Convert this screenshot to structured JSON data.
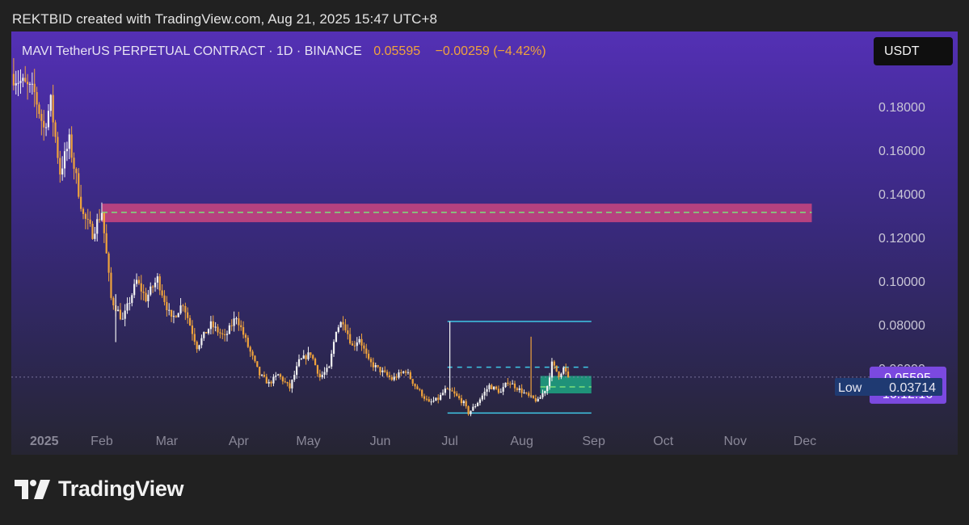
{
  "header": {
    "attribution": "REKTBID created with TradingView.com, Aug 21, 2025 15:47 UTC+8"
  },
  "symbol": {
    "title": "MAVI TetherUS PERPETUAL CONTRACT · 1D · BINANCE",
    "last_price": "0.05595",
    "change": "−0.00259 (−4.42%)"
  },
  "currency_button": "USDT",
  "price_tag": {
    "price": "0.05595",
    "countdown": "16:12:16"
  },
  "low_tag": {
    "label": "Low",
    "value": "0.03714"
  },
  "brand": {
    "name": "TradingView"
  },
  "colors": {
    "up": "#f2f2f2",
    "down": "#f0a33c",
    "resistance_zone": "#d2477f",
    "support_zone": "#1e9e7e",
    "range_lines": "#3fc7e6",
    "price_tag_bg": "#7b49e0",
    "low_tag_bg": "#1f3a72"
  },
  "chart_data": {
    "type": "candlestick",
    "interval": "1D",
    "y_axis": {
      "min": 0.03,
      "max": 0.19,
      "ticks": [
        0.18,
        0.16,
        0.14,
        0.12,
        0.1,
        0.08,
        0.06
      ],
      "tick_labels": [
        "0.18000",
        "0.16000",
        "0.14000",
        "0.12000",
        "0.10000",
        "0.08000",
        "0.06000"
      ],
      "position": "right"
    },
    "x_axis": {
      "start": "2024-12-24",
      "end": "2025-12-31",
      "labels": [
        {
          "date": "2025-01-01",
          "text": "2025"
        },
        {
          "date": "2025-02-01",
          "text": "Feb"
        },
        {
          "date": "2025-03-01",
          "text": "Mar"
        },
        {
          "date": "2025-04-01",
          "text": "Apr"
        },
        {
          "date": "2025-05-01",
          "text": "May"
        },
        {
          "date": "2025-06-01",
          "text": "Jun"
        },
        {
          "date": "2025-07-01",
          "text": "Jul"
        },
        {
          "date": "2025-08-01",
          "text": "Aug"
        },
        {
          "date": "2025-09-01",
          "text": "Sep"
        },
        {
          "date": "2025-10-01",
          "text": "Oct"
        },
        {
          "date": "2025-11-01",
          "text": "Nov"
        },
        {
          "date": "2025-12-01",
          "text": "Dec"
        }
      ]
    },
    "price_path": [
      [
        "2024-12-24",
        0.195
      ],
      [
        "2025-01-03",
        0.186
      ],
      [
        "2025-01-07",
        0.17
      ],
      [
        "2025-01-10",
        0.182
      ],
      [
        "2025-01-14",
        0.15
      ],
      [
        "2025-01-18",
        0.164
      ],
      [
        "2025-01-24",
        0.13
      ],
      [
        "2025-01-28",
        0.122
      ],
      [
        "2025-02-01",
        0.132
      ],
      [
        "2025-02-05",
        0.092
      ],
      [
        "2025-02-10",
        0.082
      ],
      [
        "2025-02-16",
        0.1
      ],
      [
        "2025-02-20",
        0.092
      ],
      [
        "2025-02-25",
        0.101
      ],
      [
        "2025-03-03",
        0.082
      ],
      [
        "2025-03-08",
        0.09
      ],
      [
        "2025-03-14",
        0.07
      ],
      [
        "2025-03-20",
        0.08
      ],
      [
        "2025-03-26",
        0.074
      ],
      [
        "2025-03-31",
        0.084
      ],
      [
        "2025-04-05",
        0.07
      ],
      [
        "2025-04-10",
        0.057
      ],
      [
        "2025-04-14",
        0.053
      ],
      [
        "2025-04-18",
        0.057
      ],
      [
        "2025-04-23",
        0.051
      ],
      [
        "2025-04-27",
        0.063
      ],
      [
        "2025-05-02",
        0.067
      ],
      [
        "2025-05-06",
        0.056
      ],
      [
        "2025-05-10",
        0.06
      ],
      [
        "2025-05-13",
        0.078
      ],
      [
        "2025-05-16",
        0.082
      ],
      [
        "2025-05-20",
        0.07
      ],
      [
        "2025-05-23",
        0.074
      ],
      [
        "2025-05-27",
        0.063
      ],
      [
        "2025-06-01",
        0.059
      ],
      [
        "2025-06-06",
        0.055
      ],
      [
        "2025-06-12",
        0.059
      ],
      [
        "2025-06-16",
        0.052
      ],
      [
        "2025-06-22",
        0.044
      ],
      [
        "2025-06-26",
        0.046
      ],
      [
        "2025-06-29",
        0.05
      ],
      [
        "2025-07-02",
        0.049
      ],
      [
        "2025-07-07",
        0.044
      ],
      [
        "2025-07-09",
        0.0395
      ],
      [
        "2025-07-12",
        0.043
      ],
      [
        "2025-07-18",
        0.052
      ],
      [
        "2025-07-23",
        0.049
      ],
      [
        "2025-07-26",
        0.054
      ],
      [
        "2025-07-30",
        0.051
      ],
      [
        "2025-08-04",
        0.047
      ],
      [
        "2025-08-08",
        0.045
      ],
      [
        "2025-08-12",
        0.052
      ],
      [
        "2025-08-14",
        0.062
      ],
      [
        "2025-08-17",
        0.057
      ],
      [
        "2025-08-19",
        0.06
      ],
      [
        "2025-08-21",
        0.05595
      ]
    ],
    "annotations": [
      {
        "type": "zone",
        "name": "resistance",
        "from": "2025-02-01",
        "to": "2025-12-04",
        "y_low": 0.127,
        "y_high": 0.1355,
        "midline": 0.1315
      },
      {
        "type": "zone",
        "name": "support",
        "from": "2025-08-09",
        "to": "2025-08-31",
        "y_low": 0.0485,
        "y_high": 0.0565,
        "midline": 0.0515
      },
      {
        "type": "range",
        "name": "trading-range",
        "from": "2025-06-30",
        "to": "2025-08-31",
        "y_high": 0.0815,
        "y_low": 0.0395,
        "mid_dashed": 0.0605
      }
    ],
    "current_price": 0.05595,
    "low": 0.03714
  }
}
